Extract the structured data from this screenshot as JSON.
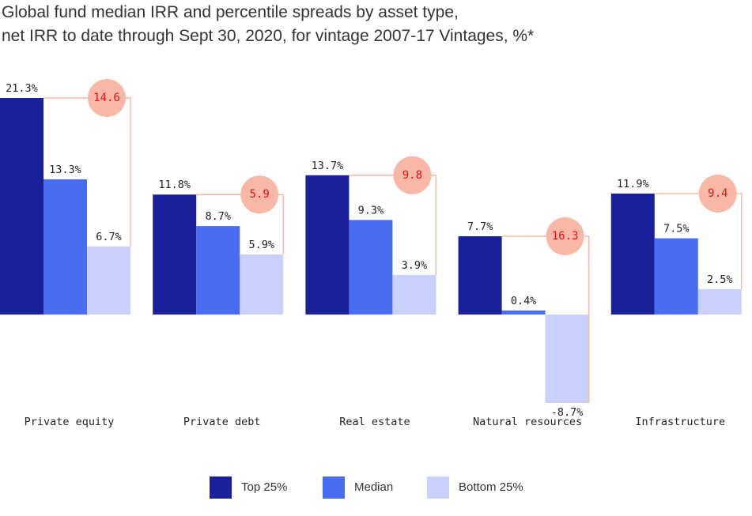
{
  "chart_data": {
    "type": "bar",
    "title_lines": [
      "Global fund  median IRR and percentile spreads by asset type,",
      "net IRR to date through Sept 30, 2020, for vintage 2007-17 Vintages, %*"
    ],
    "categories": [
      "Private equity",
      "Private debt",
      "Real estate",
      "Natural resources",
      "Infrastructure"
    ],
    "series": [
      {
        "name": "Top 25%",
        "color": "#19209a",
        "values": [
          21.3,
          11.8,
          13.7,
          7.7,
          11.9
        ],
        "value_labels": [
          "21.3%",
          "11.8%",
          "13.7%",
          "7.7%",
          "11.9%"
        ]
      },
      {
        "name": "Median",
        "color": "#4a6cf2",
        "values": [
          13.3,
          8.7,
          9.3,
          0.4,
          7.5
        ],
        "value_labels": [
          "13.3%",
          "8.7%",
          "9.3%",
          "0.4%",
          "7.5%"
        ]
      },
      {
        "name": "Bottom 25%",
        "color": "#c9d0fb",
        "values": [
          6.7,
          5.9,
          3.9,
          -8.7,
          2.5
        ],
        "value_labels": [
          "6.7%",
          "5.9%",
          "3.9%",
          "-8.7%",
          "2.5%"
        ]
      }
    ],
    "spreads": [
      14.6,
      5.9,
      9.8,
      16.3,
      9.4
    ],
    "spread_color": "#f9b8a6"
  }
}
